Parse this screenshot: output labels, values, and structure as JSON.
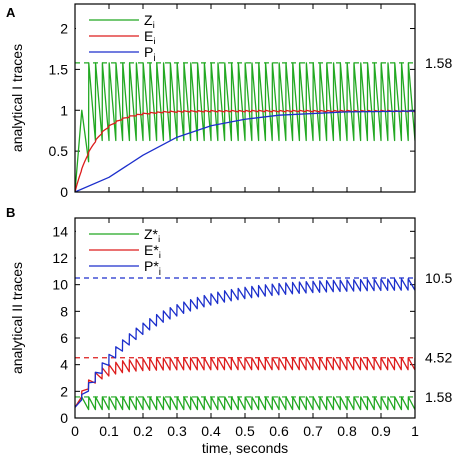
{
  "chart_data": [
    {
      "panel_label": "A",
      "type": "line",
      "ylabel": "analytical I traces",
      "xlim": [
        0,
        1
      ],
      "ylim": [
        0,
        2.3
      ],
      "yticks": [
        0,
        0.5,
        1,
        1.5,
        2
      ],
      "ytick_labels": [
        "0",
        "0.5",
        "1",
        "1.5",
        "2"
      ],
      "xtick_labels_shown": false,
      "legend": {
        "placement": "top-left",
        "entries": [
          {
            "base": "Z",
            "sub": "i",
            "color": "#22a822"
          },
          {
            "base": "E",
            "sub": "i",
            "color": "#dd1c1c"
          },
          {
            "base": "P",
            "sub": "i",
            "color": "#1c2fcc"
          }
        ]
      },
      "reference_lines": [
        {
          "y": 1.58,
          "label": "1.58",
          "color": "#22a822",
          "style": "dashed"
        }
      ],
      "series": [
        {
          "name": "Zi",
          "color": "#22a822",
          "kind": "sawtooth",
          "t_start": 0.02,
          "period": 0.02,
          "trough": 0.63,
          "peak": 1.58,
          "initial": [
            [
              0,
              0.0
            ],
            [
              0.02,
              1.0
            ],
            [
              0.04,
              0.37
            ]
          ]
        },
        {
          "name": "Ei",
          "color": "#dd1c1c",
          "kind": "saturating_ripple",
          "plateau": 1.0,
          "tau": 0.06,
          "ripple": 0.02,
          "points": [
            [
              0,
              0
            ],
            [
              0.05,
              0.52
            ],
            [
              0.1,
              0.79
            ],
            [
              0.15,
              0.9
            ],
            [
              0.2,
              0.96
            ],
            [
              0.3,
              0.99
            ],
            [
              0.5,
              1.0
            ],
            [
              1.0,
              1.0
            ]
          ]
        },
        {
          "name": "Pi",
          "color": "#1c2fcc",
          "kind": "sigmoid_rise",
          "points": [
            [
              0,
              0
            ],
            [
              0.1,
              0.18
            ],
            [
              0.2,
              0.45
            ],
            [
              0.3,
              0.67
            ],
            [
              0.4,
              0.81
            ],
            [
              0.5,
              0.89
            ],
            [
              0.6,
              0.94
            ],
            [
              0.8,
              0.98
            ],
            [
              1.0,
              0.99
            ]
          ]
        }
      ]
    },
    {
      "panel_label": "B",
      "type": "line",
      "ylabel": "analytical II traces",
      "xlabel": "time, seconds",
      "xlim": [
        0,
        1
      ],
      "ylim": [
        0,
        15
      ],
      "xticks": [
        0,
        0.1,
        0.2,
        0.3,
        0.4,
        0.5,
        0.6,
        0.7,
        0.8,
        0.9,
        1
      ],
      "xtick_labels": [
        "0",
        "0.1",
        "0.2",
        "0.3",
        "0.4",
        "0.5",
        "0.6",
        "0.7",
        "0.8",
        "0.9",
        "1"
      ],
      "yticks": [
        0,
        2,
        4,
        6,
        8,
        10,
        12,
        14
      ],
      "ytick_labels": [
        "0",
        "2",
        "4",
        "6",
        "8",
        "10",
        "12",
        "14"
      ],
      "legend": {
        "placement": "top-left",
        "entries": [
          {
            "base": "Z*",
            "sub": "i",
            "color": "#22a822"
          },
          {
            "base": "E*",
            "sub": "i",
            "color": "#dd1c1c"
          },
          {
            "base": "P*",
            "sub": "i",
            "color": "#1c2fcc"
          }
        ]
      },
      "reference_lines": [
        {
          "y": 10.5,
          "label": "10.5",
          "color": "#1c2fcc",
          "style": "dashed"
        },
        {
          "y": 4.52,
          "label": "4.52",
          "color": "#dd1c1c",
          "style": "dashed"
        },
        {
          "y": 1.58,
          "label": "1.58",
          "color": "#22a822",
          "style": "dashed"
        }
      ],
      "series": [
        {
          "name": "Z*i",
          "color": "#22a822",
          "kind": "sawtooth",
          "t_start": 0.02,
          "period": 0.02,
          "trough": 0.63,
          "peak": 1.58,
          "initial": [
            [
              0,
              0.8
            ],
            [
              0.02,
              1.58
            ]
          ]
        },
        {
          "name": "E*i",
          "color": "#dd1c1c",
          "kind": "sawtooth_rise",
          "period": 0.02,
          "peak_final": 4.52,
          "drop": 0.9,
          "tau": 0.05,
          "start": 0.8
        },
        {
          "name": "P*i",
          "color": "#1c2fcc",
          "kind": "sawtooth_rise",
          "period": 0.02,
          "peak_final": 10.5,
          "drop": 0.85,
          "tau": 0.19,
          "start": 0.8
        }
      ]
    }
  ]
}
